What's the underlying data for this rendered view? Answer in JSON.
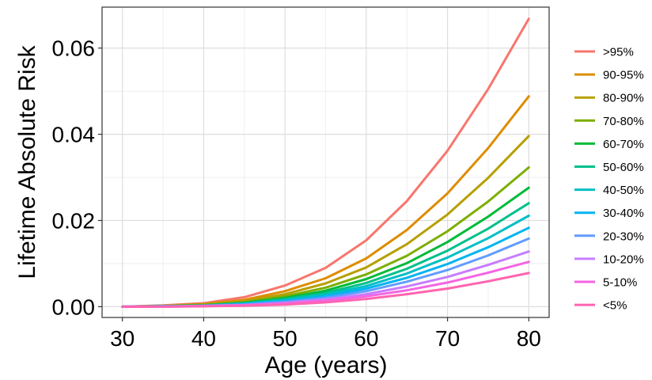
{
  "chart_data": {
    "type": "line",
    "title": "",
    "xlabel": "Age (years)",
    "ylabel": "Lifetime Absolute Risk",
    "xlim": [
      27.5,
      82.5
    ],
    "ylim": [
      -0.0025,
      0.0695
    ],
    "xticks": [
      30,
      40,
      50,
      60,
      70,
      80
    ],
    "xtick_labels": [
      "30",
      "40",
      "50",
      "60",
      "70",
      "80"
    ],
    "yticks": [
      0,
      0.02,
      0.04,
      0.06
    ],
    "ytick_labels": [
      "0.00",
      "0.02",
      "0.04",
      "0.06"
    ],
    "grid": true,
    "legend_position": "right",
    "x": [
      30,
      35,
      40,
      45,
      50,
      55,
      60,
      65,
      70,
      75,
      80
    ],
    "series": [
      {
        "name": ">95%",
        "color": "#F8766D",
        "values": [
          0,
          0.0003,
          0.0008,
          0.0022,
          0.0049,
          0.009,
          0.0154,
          0.0245,
          0.0362,
          0.0505,
          0.0668
        ]
      },
      {
        "name": "90-95%",
        "color": "#DE8C00",
        "values": [
          0,
          0.0002,
          0.0006,
          0.0016,
          0.0036,
          0.0066,
          0.0112,
          0.0178,
          0.0263,
          0.0368,
          0.0488
        ]
      },
      {
        "name": "80-90%",
        "color": "#B79F00",
        "values": [
          0,
          0.0002,
          0.0005,
          0.0013,
          0.0029,
          0.0054,
          0.0091,
          0.0145,
          0.0214,
          0.0299,
          0.0396
        ]
      },
      {
        "name": "70-80%",
        "color": "#7CAE00",
        "values": [
          0,
          0.0001,
          0.0004,
          0.001,
          0.0024,
          0.0044,
          0.0075,
          0.0118,
          0.0175,
          0.0244,
          0.0323
        ]
      },
      {
        "name": "60-70%",
        "color": "#00BA38",
        "values": [
          0,
          0.0001,
          0.0003,
          0.0009,
          0.002,
          0.0037,
          0.0064,
          0.0101,
          0.015,
          0.0209,
          0.0276
        ]
      },
      {
        "name": "50-60%",
        "color": "#00C08B",
        "values": [
          0,
          0.0001,
          0.0003,
          0.0008,
          0.0018,
          0.0032,
          0.0055,
          0.0088,
          0.013,
          0.0181,
          0.024
        ]
      },
      {
        "name": "40-50%",
        "color": "#00BFC4",
        "values": [
          0,
          0.0001,
          0.0002,
          0.0007,
          0.0015,
          0.0028,
          0.0048,
          0.0077,
          0.0114,
          0.0159,
          0.0211
        ]
      },
      {
        "name": "30-40%",
        "color": "#00B4F0",
        "values": [
          0,
          0.0001,
          0.0002,
          0.0006,
          0.0013,
          0.0024,
          0.0042,
          0.0067,
          0.0099,
          0.0138,
          0.0183
        ]
      },
      {
        "name": "20-30%",
        "color": "#619CFF",
        "values": [
          0,
          0.0001,
          0.0002,
          0.0005,
          0.0011,
          0.0021,
          0.0036,
          0.0058,
          0.0085,
          0.0119,
          0.0158
        ]
      },
      {
        "name": "10-20%",
        "color": "#C77CFF",
        "values": [
          0,
          0,
          0.0002,
          0.0004,
          0.0009,
          0.0017,
          0.0029,
          0.0047,
          0.0069,
          0.0097,
          0.0128
        ]
      },
      {
        "name": "5-10%",
        "color": "#F564E3",
        "values": [
          0,
          0,
          0.0001,
          0.0003,
          0.0007,
          0.0014,
          0.0024,
          0.0038,
          0.0056,
          0.0079,
          0.0104
        ]
      },
      {
        "name": "<5%",
        "color": "#FF64B0",
        "values": [
          0,
          0,
          0.0001,
          0.0002,
          0.0005,
          0.001,
          0.0018,
          0.0029,
          0.0042,
          0.0059,
          0.0078
        ]
      }
    ]
  }
}
